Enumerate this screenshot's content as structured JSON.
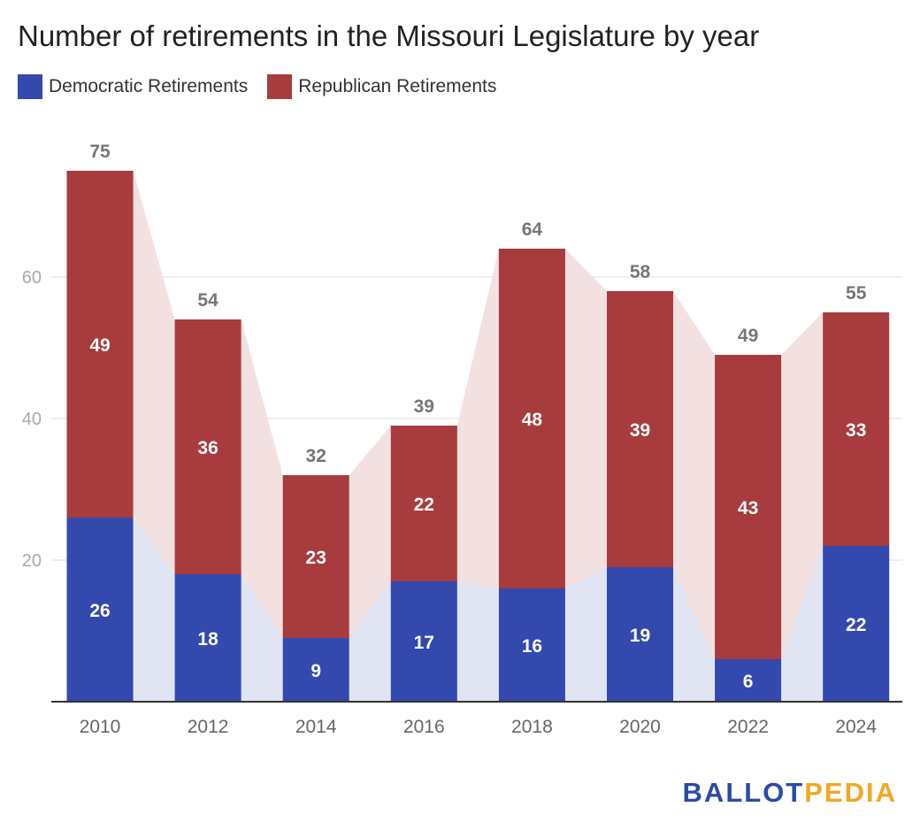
{
  "colors": {
    "democratic": "#3349ad",
    "republican": "#a73b3d",
    "democratic_band": "#e1e4f3",
    "republican_band": "#f3e1e1",
    "brand_blue": "#2d4aa6",
    "brand_orange": "#f0a824"
  },
  "chart_data": {
    "type": "bar",
    "stacked": true,
    "title": "Number of retirements in the Missouri Legislature by year",
    "categories": [
      "2010",
      "2012",
      "2014",
      "2016",
      "2018",
      "2020",
      "2022",
      "2024"
    ],
    "series": [
      {
        "name": "Democratic Retirements",
        "values": [
          26,
          18,
          9,
          17,
          16,
          19,
          6,
          22
        ]
      },
      {
        "name": "Republican Retirements",
        "values": [
          49,
          36,
          23,
          22,
          48,
          39,
          43,
          33
        ]
      }
    ],
    "totals": [
      75,
      54,
      32,
      39,
      64,
      58,
      49,
      55
    ],
    "yticks": [
      "20",
      "40",
      "60"
    ],
    "ylim": [
      0,
      75
    ],
    "grid": true,
    "legend_position": "top-left"
  },
  "brand": {
    "part1": "BALLOT",
    "part2": "PEDIA"
  }
}
